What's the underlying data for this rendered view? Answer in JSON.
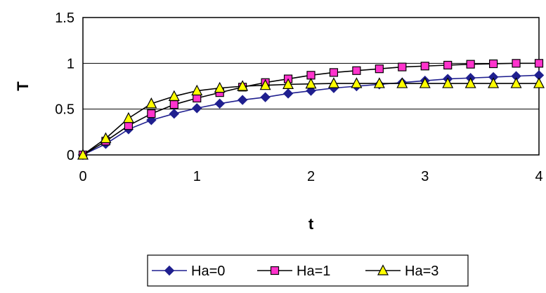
{
  "chart_data": {
    "type": "line",
    "xlabel": "t",
    "ylabel": "T",
    "xlim": [
      0,
      4
    ],
    "ylim": [
      0,
      1.5
    ],
    "x_ticks": [
      "0",
      "1",
      "2",
      "3",
      "4"
    ],
    "y_ticks": [
      "0",
      "0.5",
      "1",
      "1.5"
    ],
    "grid": "horizontal",
    "legend_position": "bottom",
    "x": [
      0,
      0.2,
      0.4,
      0.6,
      0.8,
      1.0,
      1.2,
      1.4,
      1.6,
      1.8,
      2.0,
      2.2,
      2.4,
      2.6,
      2.8,
      3.0,
      3.2,
      3.4,
      3.6,
      3.8,
      4.0
    ],
    "series": [
      {
        "name": "Ha=0",
        "marker": "diamond",
        "marker_color": "#1f1f8f",
        "line_color": "#1f1f8f",
        "values": [
          0,
          0.12,
          0.28,
          0.38,
          0.45,
          0.51,
          0.56,
          0.6,
          0.63,
          0.67,
          0.7,
          0.73,
          0.75,
          0.77,
          0.79,
          0.81,
          0.83,
          0.84,
          0.85,
          0.86,
          0.87
        ]
      },
      {
        "name": "Ha=1",
        "marker": "square",
        "marker_color": "#ff33cc",
        "line_color": "#000000",
        "values": [
          0,
          0.15,
          0.32,
          0.45,
          0.55,
          0.62,
          0.68,
          0.74,
          0.79,
          0.83,
          0.87,
          0.9,
          0.92,
          0.94,
          0.96,
          0.97,
          0.98,
          0.99,
          0.995,
          1.0,
          1.0
        ]
      },
      {
        "name": "Ha=3",
        "marker": "triangle",
        "marker_color": "#ffff00",
        "line_color": "#000000",
        "values": [
          0,
          0.18,
          0.4,
          0.56,
          0.64,
          0.7,
          0.73,
          0.75,
          0.76,
          0.77,
          0.775,
          0.78,
          0.78,
          0.78,
          0.78,
          0.78,
          0.78,
          0.78,
          0.78,
          0.78,
          0.78
        ]
      }
    ]
  }
}
